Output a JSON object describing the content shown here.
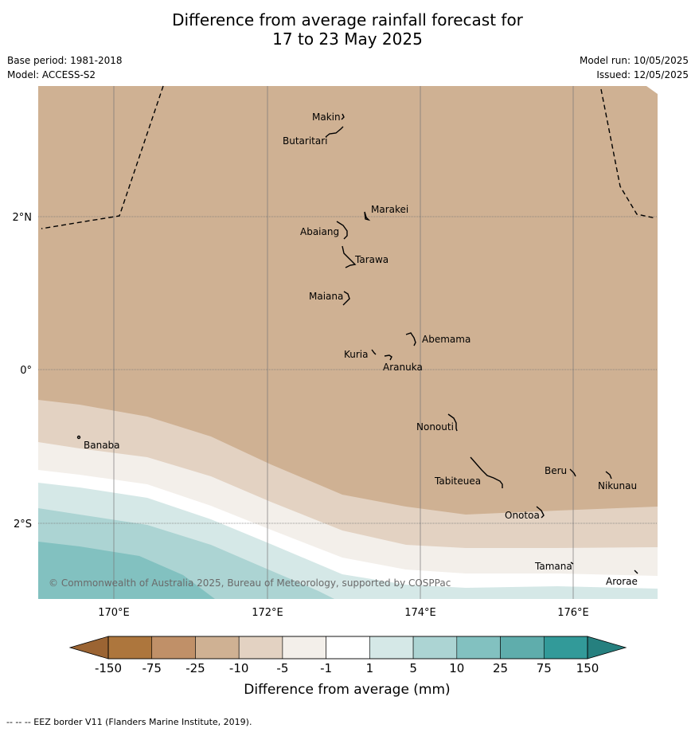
{
  "header": {
    "title_line1": "Difference from average rainfall forecast for",
    "title_line2": "17 to 23 May 2025",
    "base_period": "Base period: 1981-2018",
    "model": "Model: ACCESS-S2",
    "model_run": "Model run: 10/05/2025",
    "issued": "Issued: 12/05/2025"
  },
  "map": {
    "lon_ticks": [
      "170°E",
      "172°E",
      "174°E",
      "176°E"
    ],
    "lat_ticks": [
      "2°N",
      "0°",
      "2°S"
    ],
    "copyright": "© Commonwealth of Australia 2025, Bureau of Meteorology, supported by COSPPac",
    "islands": {
      "makin": "Makin",
      "butaritari": "Butaritari",
      "marakei": "Marakei",
      "abaiang": "Abaiang",
      "tarawa": "Tarawa",
      "maiana": "Maiana",
      "abemama": "Abemama",
      "kuria": "Kuria",
      "aranuka": "Aranuka",
      "nonouti": "Nonouti",
      "banaba": "Banaba",
      "tabiteuea": "Tabiteuea",
      "beru": "Beru",
      "nikunau": "Nikunau",
      "onotoa": "Onotoa",
      "tamana": "Tamana",
      "arorae": "Arorae"
    },
    "band_colors": {
      "-25_to_-10": "#cfb193",
      "-10_to_-5": "#e3d2c2",
      "-5_to_-1": "#f3efea",
      "-1_to_1": "#ffffff",
      "1_to_5": "#d5e8e7",
      "5_to_10": "#acd4d3",
      "10_to_25": "#82c1c0"
    }
  },
  "colorbar": {
    "ticks": [
      "-150",
      "-75",
      "-25",
      "-10",
      "-5",
      "-1",
      "1",
      "5",
      "10",
      "25",
      "75",
      "150"
    ],
    "colors": [
      "#ad763d",
      "#c09068",
      "#cfb193",
      "#e3d2c2",
      "#f3efea",
      "#ffffff",
      "#d5e8e7",
      "#acd4d3",
      "#82c1c0",
      "#5fadac",
      "#329a99"
    ],
    "low_extend_color": "#9b6433",
    "high_extend_color": "#26807f",
    "label": "Difference from average (mm)"
  },
  "footer": {
    "eez_note": "--  --  -- EEZ border V11 (Flanders Marine Institute, 2019)."
  }
}
